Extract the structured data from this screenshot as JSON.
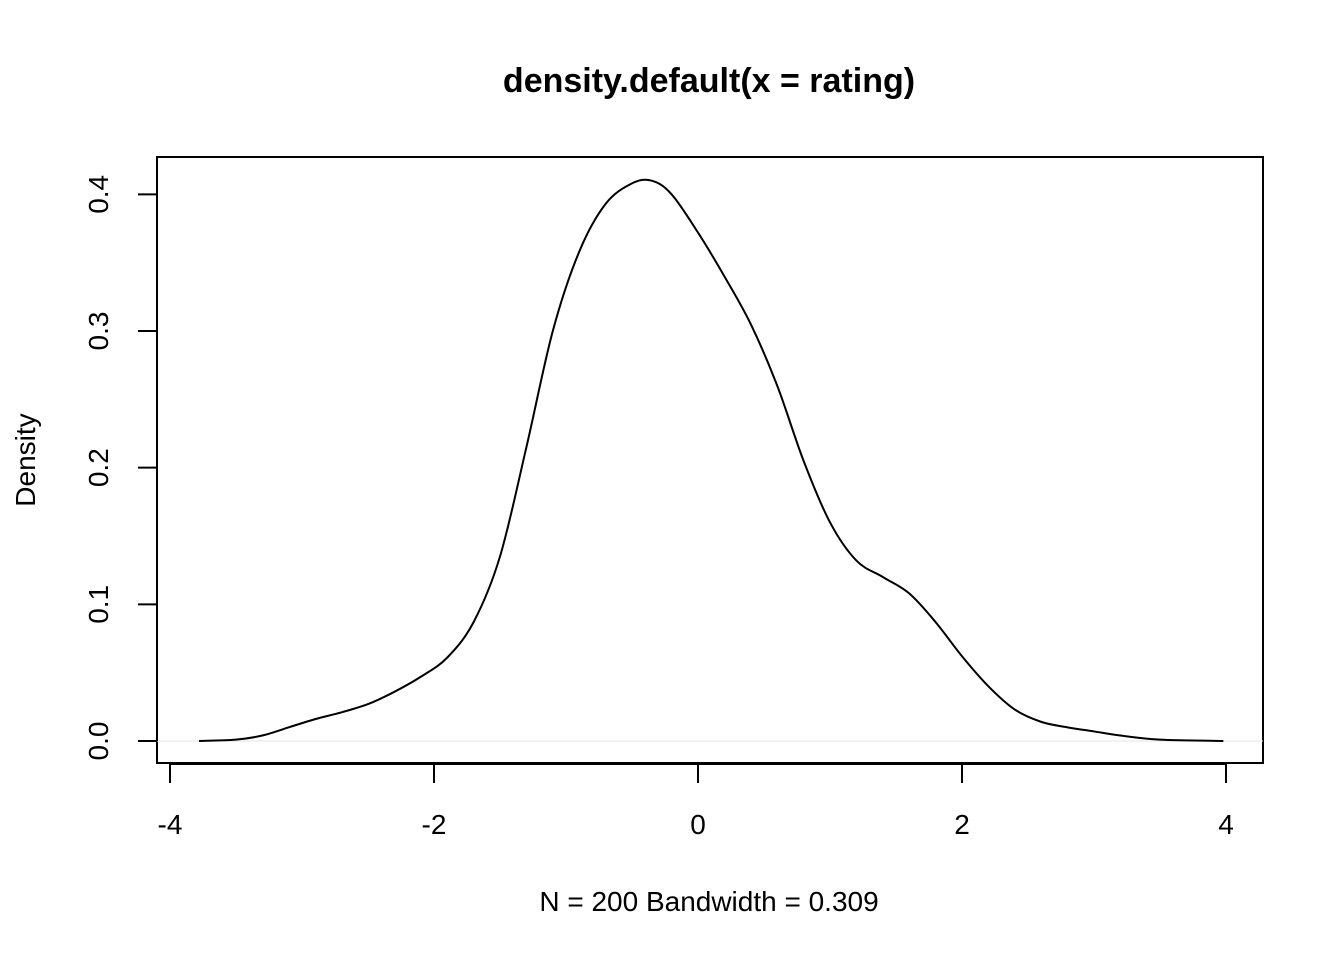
{
  "chart_data": {
    "type": "line",
    "title": "density.default(x = rating)",
    "xlabel": "N = 200   Bandwidth = 0.309",
    "ylabel": "Density",
    "xlim": [
      -4,
      4
    ],
    "ylim": [
      0,
      0.4
    ],
    "grid": false,
    "legend": "none",
    "x_ticks": [
      -4,
      -2,
      0,
      2,
      4
    ],
    "x_tick_labels": [
      "-4",
      "-2",
      "0",
      "2",
      "4"
    ],
    "y_ticks": [
      0.0,
      0.1,
      0.2,
      0.3,
      0.4
    ],
    "y_tick_labels": [
      "0.0",
      "0.1",
      "0.2",
      "0.3",
      "0.4"
    ],
    "series": [
      {
        "line_color": "#000000",
        "x": [
          -3.78,
          -3.5,
          -3.3,
          -3.1,
          -2.9,
          -2.7,
          -2.5,
          -2.3,
          -2.1,
          -1.9,
          -1.7,
          -1.5,
          -1.3,
          -1.1,
          -0.9,
          -0.7,
          -0.5,
          -0.35,
          -0.2,
          0.0,
          0.2,
          0.4,
          0.6,
          0.8,
          1.0,
          1.2,
          1.4,
          1.6,
          1.8,
          2.0,
          2.2,
          2.4,
          2.6,
          2.8,
          3.0,
          3.2,
          3.5,
          3.98
        ],
        "y": [
          0.0,
          0.001,
          0.004,
          0.01,
          0.016,
          0.021,
          0.027,
          0.036,
          0.047,
          0.061,
          0.087,
          0.135,
          0.215,
          0.3,
          0.358,
          0.393,
          0.408,
          0.41,
          0.4,
          0.372,
          0.34,
          0.305,
          0.26,
          0.205,
          0.16,
          0.132,
          0.12,
          0.108,
          0.087,
          0.062,
          0.04,
          0.023,
          0.014,
          0.01,
          0.007,
          0.004,
          0.001,
          0.0
        ]
      }
    ]
  }
}
